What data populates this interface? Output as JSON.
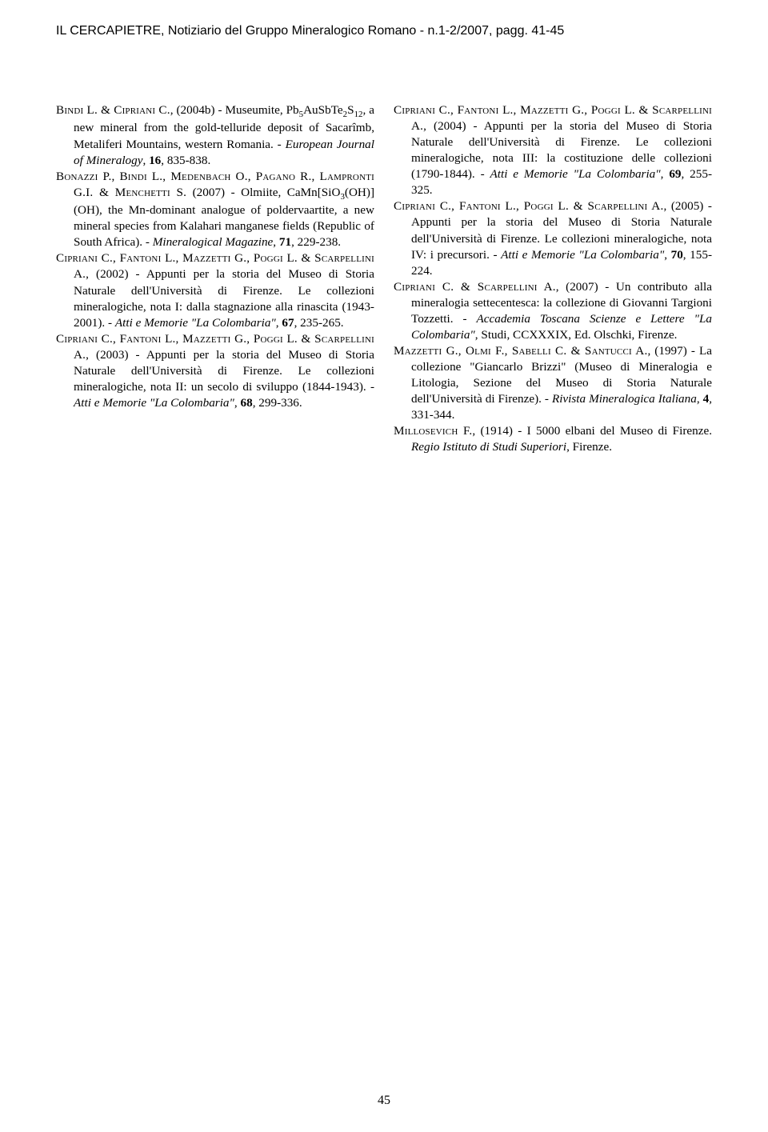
{
  "header": {
    "running_head": "IL CERCAPIETRE, Notiziario del Gruppo Mineralogico Romano - n.1-2/2007, pagg. 41-45"
  },
  "page_number": "45",
  "refs_left": [
    {
      "authors": "Bindi L. & Cipriani C.",
      "year_title": ", (2004b) - Museumite, Pb",
      "sub1": "5",
      "mid1": "AuSbTe",
      "sub2": "2",
      "mid2": "S",
      "sub3": "12",
      "rest": ", a new mineral from the gold-telluride deposit of Sacarîmb, Metaliferi Mountains, western Romania. - ",
      "journal": "European Journal of Mineralogy",
      "tail": ", ",
      "vol": "16",
      "pages": ", 835-838."
    },
    {
      "authors": "Bonazzi P., Bindi L., Medenbach O., Pagano R., Lampronti G.I. & Menchetti S.",
      "rest1": " (2007) - Olmiite, CaMn[SiO",
      "sub1": "3",
      "rest2": "(OH)](OH), the Mn-dominant analogue of poldervaartite, a new mineral species from Kalahari manganese fields (Republic of South Africa). - ",
      "journal": "Mineralogical Magazine",
      "tail": ", ",
      "vol": "71",
      "pages": ", 229-238."
    },
    {
      "authors": "Cipriani C., Fantoni L., Mazzetti G., Poggi L. & Scarpellini A.",
      "rest": ", (2002) - Appunti per la storia del Museo di Storia Naturale dell'Università di Firenze. Le collezioni mineralogiche, nota I: dalla stagnazione alla rinascita (1943-2001). - ",
      "journal": "Atti e Memorie \"La Colombaria\"",
      "tail": ", ",
      "vol": "67",
      "pages": ", 235-265."
    },
    {
      "authors": "Cipriani C., Fantoni L., Mazzetti G., Poggi L. & Scarpellini A.",
      "rest": ", (2003) - Appunti per la storia del Museo di Storia Naturale dell'Università di Firenze. Le collezioni mineralogiche, nota II: un secolo di sviluppo (1844-1943). - ",
      "journal": "Atti e Memorie \"La Colombaria\"",
      "tail": ", ",
      "vol": "68",
      "pages": ", 299-336."
    }
  ],
  "refs_right": [
    {
      "authors": "Cipriani C., Fantoni L., Mazzetti G., Poggi L. & Scarpellini A.",
      "rest": ", (2004) - Appunti per la storia del Museo di Storia Naturale dell'Università di Firenze. Le collezioni mineralogiche, nota III: la costituzione delle collezioni (1790-1844). - ",
      "journal": "Atti e Memorie \"La Colombaria\"",
      "tail": ", ",
      "vol": "69",
      "pages": ", 255-325."
    },
    {
      "authors": "Cipriani C., Fantoni L., Poggi L. & Scarpellini A.",
      "rest": ", (2005) - Appunti per la storia del Museo di Storia Naturale dell'Università di Firenze. Le collezioni mineralogiche, nota IV: i precursori. - ",
      "journal": "Atti e Memorie \"La Colombaria\"",
      "tail": ", ",
      "vol": "70",
      "pages": ", 155-224."
    },
    {
      "authors": "Cipriani C. & Scarpellini A.",
      "rest": ", (2007) - Un contributo alla mineralogia settecentesca: la collezione di Giovanni Targioni Tozzetti. - ",
      "journal": "Accademia Toscana Scienze e Lettere \"La Colombaria\"",
      "tail": ", Studi, CCXXXIX, Ed. Olschki, Firenze."
    },
    {
      "authors": "Mazzetti G., Olmi F., Sabelli C. & Santucci A.",
      "rest": ", (1997) - La collezione \"Giancarlo Brizzi\" (Museo di Mineralogia e Litologia, Sezione del Museo di Storia Naturale dell'Università di Firenze). - ",
      "journal": "Rivista Mineralogica Italiana",
      "tail": ", ",
      "vol": "4",
      "pages": ", 331-344."
    },
    {
      "authors": "Millosevich F.",
      "rest": ", (1914) - I 5000 elbani del Museo di Firenze. ",
      "journal": "Regio Istituto di Studi Superiori",
      "tail": ", Firenze."
    }
  ]
}
